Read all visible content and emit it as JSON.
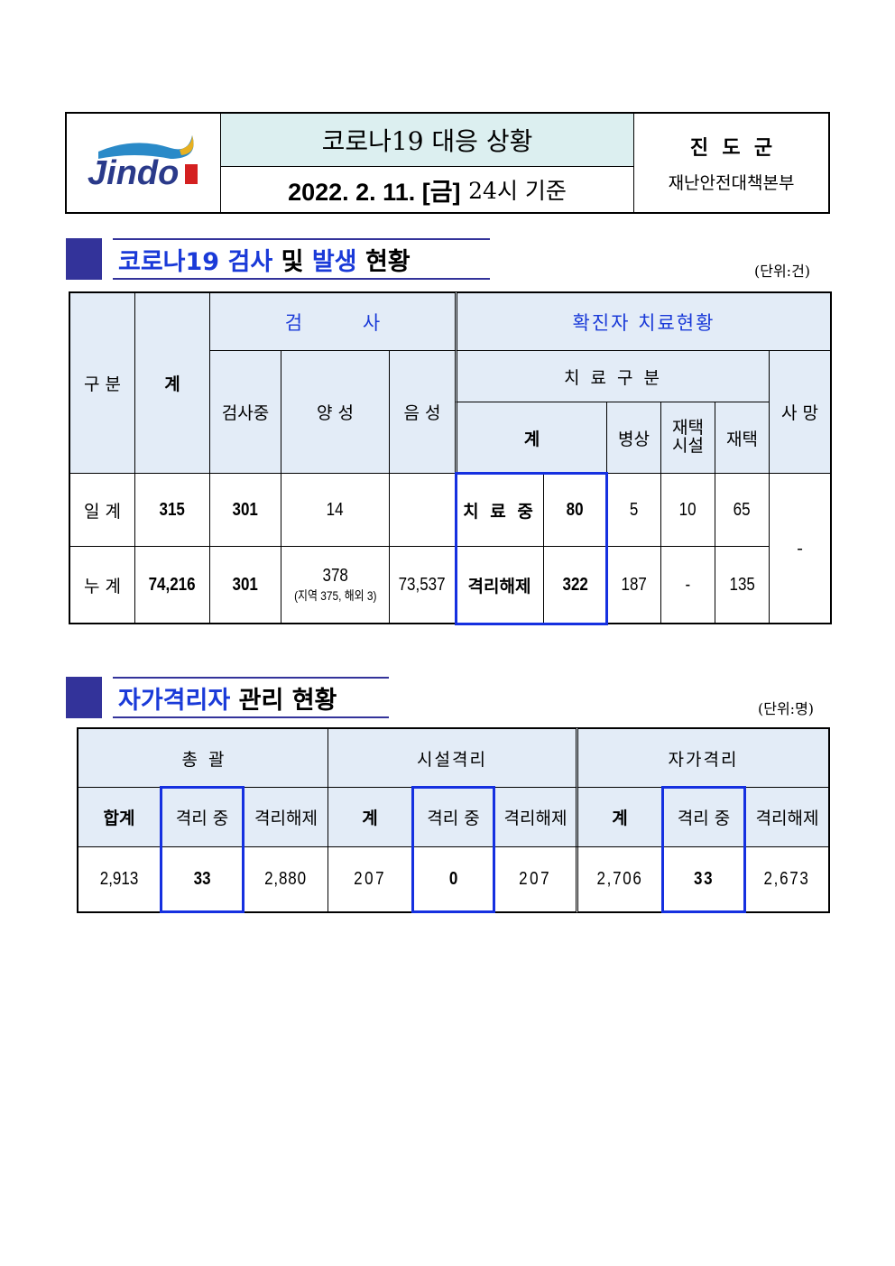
{
  "header": {
    "logo_text": "Jindo",
    "title": "코로나19 대응 상황",
    "date_bold": "2022. 2. 11. [금]",
    "date_rest": "24시 기준",
    "org": "진  도  군",
    "dept": "재난안전대책본부",
    "title_bg": "#dceff0"
  },
  "section1": {
    "title_blue1": "코로나19 검사",
    "title_black1": "및",
    "title_blue2": "발생",
    "title_black2": "현황",
    "unit": "(단위:건)",
    "headers": {
      "category": "구 분",
      "total": "계",
      "test": "검          사",
      "confirmed": "확진자 치료현황",
      "testing": "검사중",
      "positive": "양 성",
      "negative": "음 성",
      "treat_type": "치 료 구 분",
      "death": "사 망",
      "treat_total": "계",
      "hospital": "병상",
      "home_facility_1": "재택",
      "home_facility_2": "시설",
      "home": "재택"
    },
    "rows": [
      {
        "label": "일 계",
        "total": "315",
        "testing": "301",
        "positive": "14",
        "positive_detail": "",
        "negative": "",
        "status": "치 료 중",
        "status_value": "80",
        "hospital": "5",
        "home_facility": "10",
        "home": "65"
      },
      {
        "label": "누 계",
        "total": "74,216",
        "testing": "301",
        "positive": "378",
        "positive_detail": "(지역 375, 해외 3)",
        "negative": "73,537",
        "status": "격리해제",
        "status_value": "322",
        "hospital": "187",
        "home_facility": "-",
        "home": "135"
      }
    ],
    "death": "-"
  },
  "section2": {
    "title_blue": "자가격리자",
    "title_black1": "관리",
    "title_black2": "현황",
    "unit": "(단위:명)",
    "groups": [
      "총  괄",
      "시설격리",
      "자가격리"
    ],
    "subheaders": [
      "합계",
      "격리 중",
      "격리해제",
      "계",
      "격리 중",
      "격리해제",
      "계",
      "격리 중",
      "격리해제"
    ],
    "values": [
      "2,913",
      "33",
      "2,880",
      "207",
      "0",
      "207",
      "2,706",
      "33",
      "2,673"
    ]
  },
  "colors": {
    "accent": "#1530e0",
    "section_marker": "#33339a",
    "header_bg": "#e3ecf7"
  }
}
